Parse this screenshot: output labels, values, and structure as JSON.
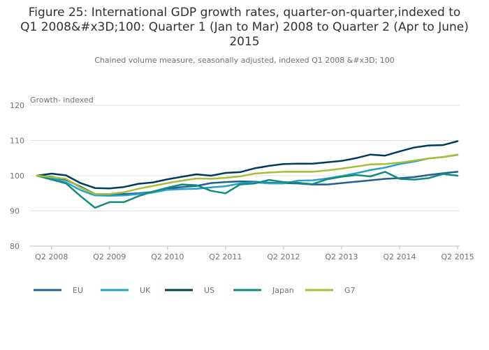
{
  "title_lines": [
    "Figure 25: International GDP growth rates, quarter-on-quarter,indexed to",
    "Q1 2008&#x3D;100: Quarter 1 (Jan to Mar) 2008 to Quarter 2 (Apr to June)",
    "2015"
  ],
  "subtitle": "Chained volume measure, seasonally adjusted, indexed Q1 2008 &#x3D; 100",
  "chart_data": {
    "type": "line",
    "ylabel": "Growth- indexed",
    "ylim": [
      80,
      120
    ],
    "yticks": [
      80,
      90,
      100,
      110,
      120
    ],
    "grid": true,
    "legend_position": "bottom",
    "x": [
      "Q1 2008",
      "Q2 2008",
      "Q3 2008",
      "Q4 2008",
      "Q1 2009",
      "Q2 2009",
      "Q3 2009",
      "Q4 2009",
      "Q1 2010",
      "Q2 2010",
      "Q3 2010",
      "Q4 2010",
      "Q1 2011",
      "Q2 2011",
      "Q3 2011",
      "Q4 2011",
      "Q1 2012",
      "Q2 2012",
      "Q3 2012",
      "Q4 2012",
      "Q1 2013",
      "Q2 2013",
      "Q3 2013",
      "Q4 2013",
      "Q1 2014",
      "Q2 2014",
      "Q3 2014",
      "Q4 2014",
      "Q1 2015",
      "Q2 2015"
    ],
    "xtick_labels": [
      {
        "at": "Q2 2008",
        "label": "Q2 2008"
      },
      {
        "at": "Q2 2009",
        "label": "Q2 2009"
      },
      {
        "at": "Q2 2010",
        "label": "Q2 2010"
      },
      {
        "at": "Q2 2011",
        "label": "Q2 2011"
      },
      {
        "at": "Q2 2012",
        "label": "Q2 2012"
      },
      {
        "at": "Q2 2013",
        "label": "Q2 2013"
      },
      {
        "at": "Q2 2014",
        "label": "Q2 2014"
      },
      {
        "at": "Q2 2015",
        "label": "Q2 2015"
      }
    ],
    "series": [
      {
        "name": "EU",
        "color": "#206095",
        "values": [
          100,
          99.7,
          98.8,
          96.9,
          94.8,
          94.6,
          94.8,
          95.0,
          95.4,
          96.3,
          96.8,
          97.1,
          97.9,
          98.2,
          98.4,
          98.3,
          98.0,
          97.9,
          97.8,
          97.5,
          97.5,
          97.9,
          98.3,
          98.7,
          99.1,
          99.3,
          99.6,
          100.2,
          100.7,
          101.1
        ]
      },
      {
        "name": "UK",
        "color": "#27a0cc",
        "values": [
          100,
          99.4,
          98.1,
          95.9,
          94.4,
          94.3,
          94.4,
          94.8,
          95.2,
          96.0,
          96.2,
          96.3,
          96.7,
          97.0,
          97.8,
          98.1,
          97.8,
          97.8,
          98.6,
          98.7,
          99.2,
          99.9,
          100.7,
          101.6,
          102.3,
          103.3,
          104.0,
          104.9,
          105.3,
          105.9
        ]
      },
      {
        "name": "US",
        "color": "#003c57",
        "values": [
          100,
          100.6,
          100.1,
          97.9,
          96.5,
          96.4,
          96.8,
          97.7,
          98.1,
          99.0,
          99.7,
          100.4,
          100.0,
          100.8,
          101.0,
          102.1,
          102.8,
          103.3,
          103.4,
          103.4,
          103.8,
          104.2,
          105.0,
          106.0,
          105.7,
          106.9,
          108.0,
          108.6,
          108.7,
          109.8
        ]
      },
      {
        "name": "Japan",
        "color": "#118c7b",
        "values": [
          100,
          98.9,
          97.8,
          94.2,
          90.9,
          92.5,
          92.5,
          94.2,
          95.5,
          96.6,
          97.5,
          97.3,
          95.7,
          95.0,
          97.5,
          97.8,
          98.8,
          98.2,
          98.0,
          97.6,
          99.0,
          99.7,
          100.2,
          99.8,
          101.1,
          99.1,
          98.9,
          99.3,
          100.5,
          100.0
        ]
      },
      {
        "name": "G7",
        "color": "#a8bd3a",
        "values": [
          100,
          99.6,
          99.1,
          96.6,
          94.8,
          94.8,
          95.3,
          96.3,
          97.1,
          97.9,
          98.6,
          99.2,
          99.1,
          99.4,
          99.8,
          100.6,
          100.9,
          101.1,
          101.1,
          101.1,
          101.5,
          102.0,
          102.6,
          103.2,
          103.3,
          103.7,
          104.3,
          104.9,
          105.3,
          106.0
        ]
      }
    ]
  }
}
